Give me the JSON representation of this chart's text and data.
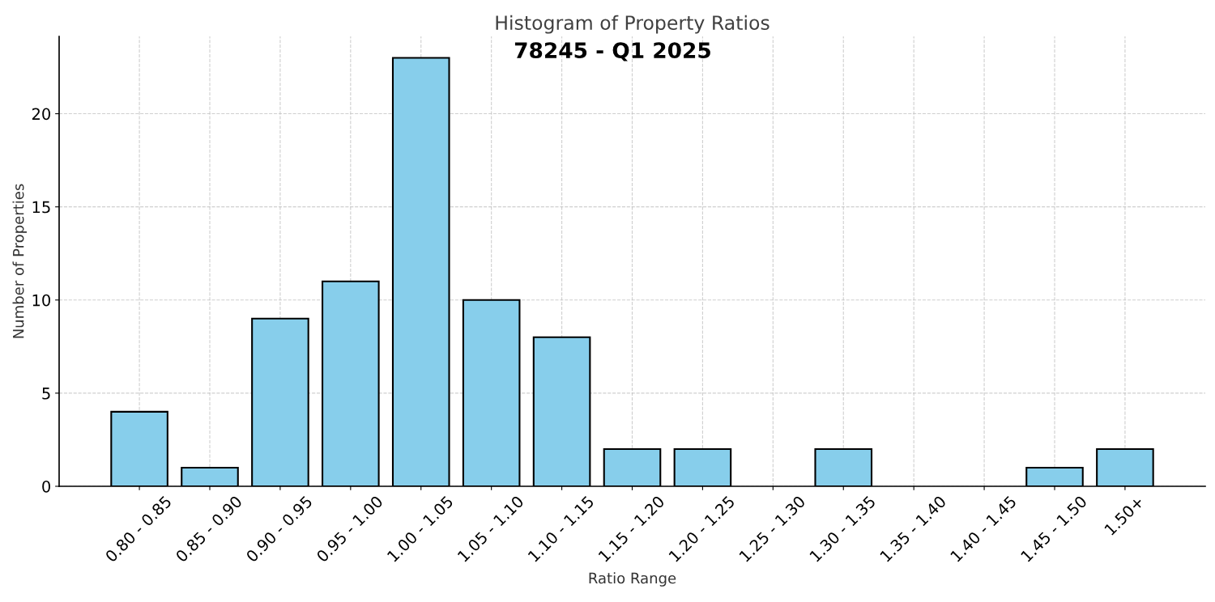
{
  "chart_data": {
    "type": "bar",
    "title": "Histogram of Property Ratios",
    "subtitle": "78245 - Q1 2025",
    "xlabel": "Ratio Range",
    "ylabel": "Number of Properties",
    "categories": [
      "0.80 - 0.85",
      "0.85 - 0.90",
      "0.90 - 0.95",
      "0.95 - 1.00",
      "1.00 - 1.05",
      "1.05 - 1.10",
      "1.10 - 1.15",
      "1.15 - 1.20",
      "1.20 - 1.25",
      "1.25 - 1.30",
      "1.30 - 1.35",
      "1.35 - 1.40",
      "1.40 - 1.45",
      "1.45 - 1.50",
      "1.50+"
    ],
    "values": [
      4,
      1,
      9,
      11,
      23,
      10,
      8,
      2,
      2,
      0,
      2,
      0,
      0,
      1,
      2
    ],
    "color": "#87ceeb",
    "ylim": [
      0,
      24.15
    ],
    "yticks": [
      0,
      5,
      10,
      15,
      20
    ],
    "grid": true
  }
}
